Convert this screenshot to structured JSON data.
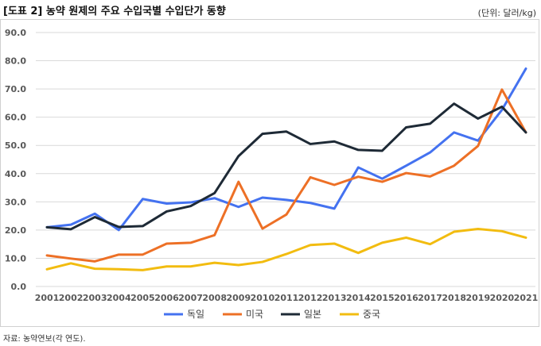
{
  "header": {
    "title": "[도표 2] 농약 원제의 주요 수입국별 수입단가 동향",
    "unit": "(단위: 달러/kg)"
  },
  "footer": {
    "source": "자료: 농약연보(각 연도)."
  },
  "chart_data": {
    "type": "line",
    "title": "",
    "xlabel": "",
    "ylabel": "",
    "ylim": [
      0,
      90
    ],
    "yticks": [
      "0.0",
      "10.0",
      "20.0",
      "30.0",
      "40.0",
      "50.0",
      "60.0",
      "70.0",
      "80.0",
      "90.0"
    ],
    "x": [
      "2001",
      "2002",
      "2003",
      "2004",
      "2005",
      "2006",
      "2007",
      "2008",
      "2009",
      "2010",
      "2011",
      "2012",
      "2013",
      "2014",
      "2015",
      "2016",
      "2017",
      "2018",
      "2019",
      "2020",
      "2021"
    ],
    "grid": true,
    "legend_position": "bottom",
    "series": [
      {
        "name": "독일",
        "color": "#4472F0",
        "values": [
          21.0,
          21.9,
          25.8,
          20.0,
          31.0,
          29.4,
          29.8,
          31.3,
          28.2,
          31.5,
          30.7,
          29.6,
          27.6,
          42.2,
          38.2,
          42.8,
          47.5,
          54.6,
          51.7,
          62.6,
          77.2
        ]
      },
      {
        "name": "미국",
        "color": "#ED7026",
        "values": [
          11.0,
          9.9,
          8.9,
          11.3,
          11.3,
          15.2,
          15.5,
          18.2,
          37.1,
          20.5,
          25.5,
          38.7,
          36.0,
          38.9,
          37.1,
          40.2,
          39.0,
          42.8,
          49.8,
          69.8,
          54.6
        ]
      },
      {
        "name": "일본",
        "color": "#1E2A36",
        "values": [
          21.0,
          20.3,
          24.6,
          21.1,
          21.4,
          26.6,
          28.5,
          33.1,
          46.2,
          54.1,
          54.9,
          50.5,
          51.4,
          48.4,
          48.1,
          56.4,
          57.7,
          64.8,
          59.5,
          63.7,
          54.6
        ]
      },
      {
        "name": "중국",
        "color": "#F2BC10",
        "values": [
          6.1,
          8.2,
          6.3,
          6.1,
          5.8,
          7.1,
          7.1,
          8.4,
          7.6,
          8.7,
          11.5,
          14.7,
          15.2,
          11.9,
          15.5,
          17.3,
          15.0,
          19.4,
          20.4,
          19.6,
          17.3
        ]
      }
    ]
  }
}
